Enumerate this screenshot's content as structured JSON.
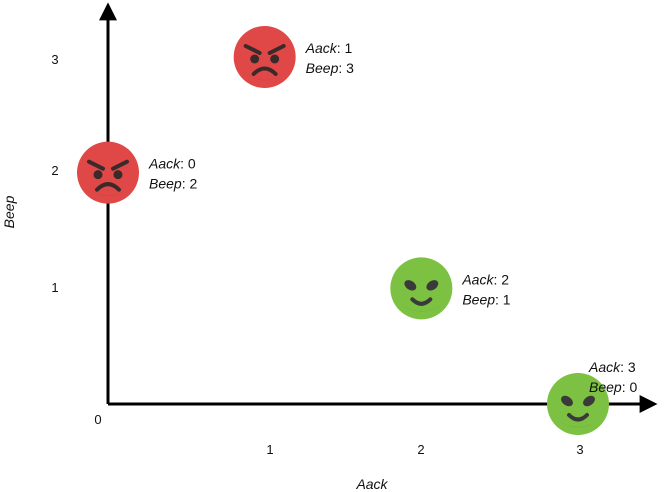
{
  "chart_data": {
    "type": "scatter",
    "xlabel": "Aack",
    "ylabel": "Beep",
    "xlim": [
      0,
      3
    ],
    "ylim": [
      0,
      3
    ],
    "x_ticks": [
      "1",
      "2",
      "3"
    ],
    "y_ticks": [
      "1",
      "2",
      "3"
    ],
    "origin_label": "0",
    "grid": false,
    "points": [
      {
        "x": 1,
        "y": 3,
        "icon": "angry-face-icon",
        "color": "#e04848",
        "label_x": "Aack: 1",
        "label_y": "Beep: 3"
      },
      {
        "x": 0,
        "y": 2,
        "icon": "angry-face-icon",
        "color": "#e04848",
        "label_x": "Aack: 0",
        "label_y": "Beep: 2"
      },
      {
        "x": 2,
        "y": 1,
        "icon": "alien-face-icon",
        "color": "#7cc142",
        "label_x": "Aack: 2",
        "label_y": "Beep: 1"
      },
      {
        "x": 3,
        "y": 0,
        "icon": "alien-face-icon",
        "color": "#7cc142",
        "label_x": "Aack: 3",
        "label_y": "Beep: 0"
      }
    ]
  }
}
